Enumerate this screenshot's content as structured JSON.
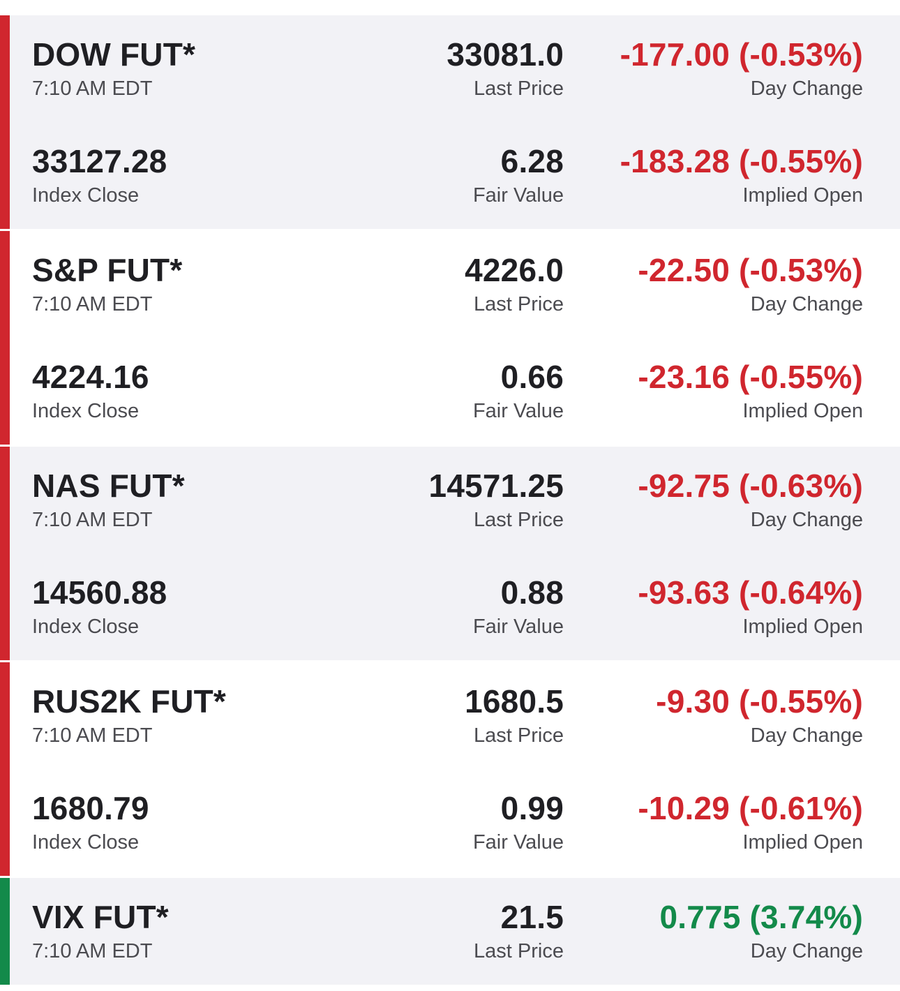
{
  "colors": {
    "negative": "#d0262e",
    "positive": "#138a4a",
    "shaded_bg": "#f2f2f6"
  },
  "cards": [
    {
      "name": "DOW FUT*",
      "time": "7:10 AM EDT",
      "last_price": "33081.0",
      "last_price_label": "Last Price",
      "day_change": "-177.00 (-0.53%)",
      "day_change_label": "Day Change",
      "index_close": "33127.28",
      "index_close_label": "Index Close",
      "fair_value": "6.28",
      "fair_value_label": "Fair Value",
      "implied_open": "-183.28 (-0.55%)",
      "implied_open_label": "Implied Open"
    },
    {
      "name": "S&P FUT*",
      "time": "7:10 AM EDT",
      "last_price": "4226.0",
      "last_price_label": "Last Price",
      "day_change": "-22.50 (-0.53%)",
      "day_change_label": "Day Change",
      "index_close": "4224.16",
      "index_close_label": "Index Close",
      "fair_value": "0.66",
      "fair_value_label": "Fair Value",
      "implied_open": "-23.16 (-0.55%)",
      "implied_open_label": "Implied Open"
    },
    {
      "name": "NAS FUT*",
      "time": "7:10 AM EDT",
      "last_price": "14571.25",
      "last_price_label": "Last Price",
      "day_change": "-92.75 (-0.63%)",
      "day_change_label": "Day Change",
      "index_close": "14560.88",
      "index_close_label": "Index Close",
      "fair_value": "0.88",
      "fair_value_label": "Fair Value",
      "implied_open": "-93.63 (-0.64%)",
      "implied_open_label": "Implied Open"
    },
    {
      "name": "RUS2K FUT*",
      "time": "7:10 AM EDT",
      "last_price": "1680.5",
      "last_price_label": "Last Price",
      "day_change": "-9.30 (-0.55%)",
      "day_change_label": "Day Change",
      "index_close": "1680.79",
      "index_close_label": "Index Close",
      "fair_value": "0.99",
      "fair_value_label": "Fair Value",
      "implied_open": "-10.29 (-0.61%)",
      "implied_open_label": "Implied Open"
    },
    {
      "name": "VIX FUT*",
      "time": "7:10 AM EDT",
      "last_price": "21.5",
      "last_price_label": "Last Price",
      "day_change": "0.775 (3.74%)",
      "day_change_label": "Day Change"
    }
  ]
}
